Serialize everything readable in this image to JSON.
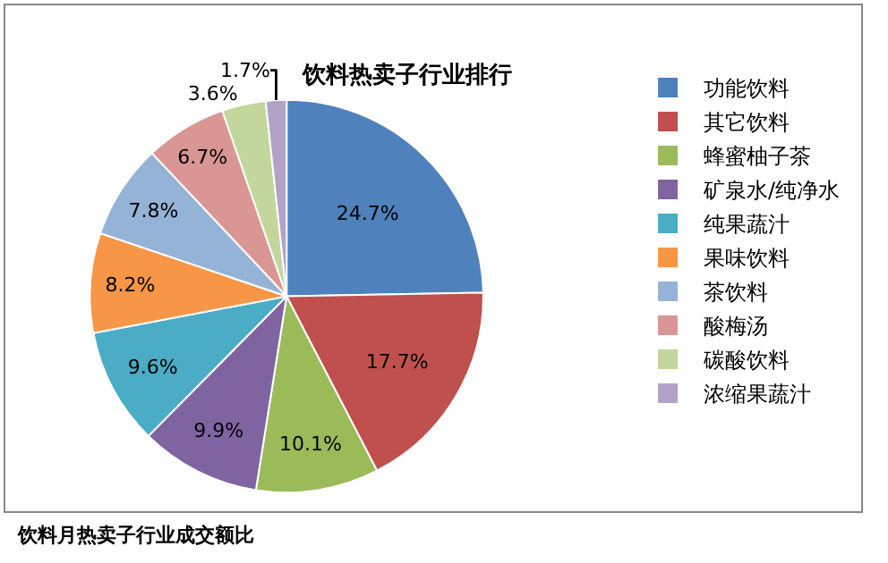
{
  "chart_data": {
    "type": "pie",
    "title": "饮料热卖子行业排行",
    "categories": [
      "功能饮料",
      "其它饮料",
      "蜂蜜柚子茶",
      "矿泉水/纯净水",
      "纯果蔬汁",
      "果味饮料",
      "茶饮料",
      "酸梅汤",
      "碳酸饮料",
      "浓缩果蔬汁"
    ],
    "values": [
      24.7,
      17.7,
      10.1,
      9.9,
      9.6,
      8.2,
      7.8,
      6.7,
      3.6,
      1.7
    ],
    "colors": [
      "#4f81bd",
      "#c0504d",
      "#9bbb59",
      "#8064a2",
      "#4bacc6",
      "#f79646",
      "#95b3d7",
      "#d99694",
      "#c3d69b",
      "#b3a2c7"
    ],
    "value_labels": [
      "24.7%",
      "17.7%",
      "10.1%",
      "9.9%",
      "9.6%",
      "8.2%",
      "7.8%",
      "6.7%",
      "3.6%",
      "1.7%"
    ],
    "legend": "right",
    "annotations": [
      "饮料月热卖子行业成交额比"
    ]
  }
}
